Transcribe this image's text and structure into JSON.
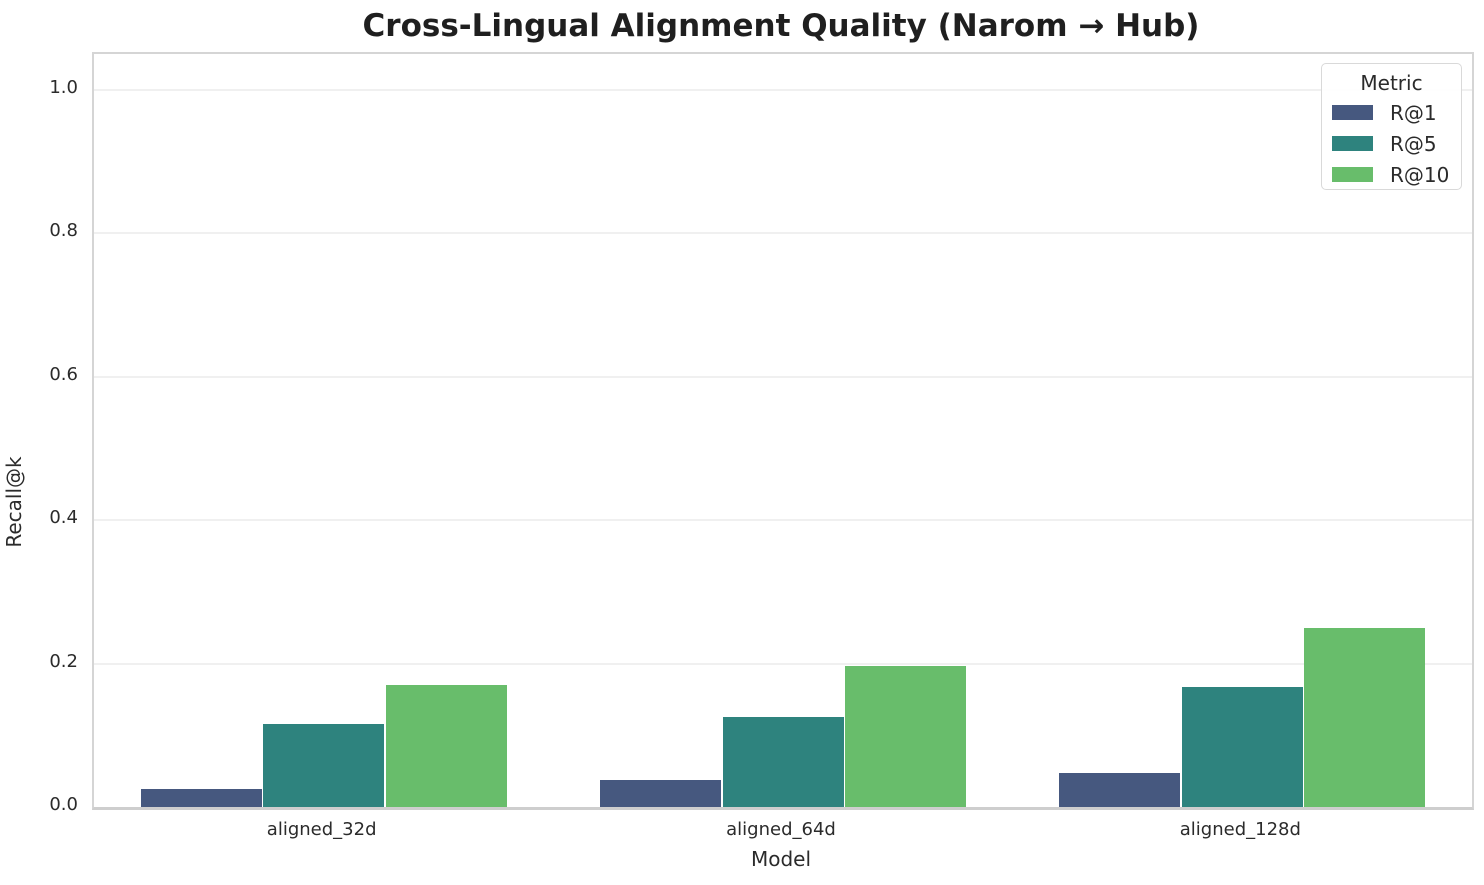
{
  "chart_data": {
    "type": "bar",
    "title": "Cross-Lingual Alignment Quality (Narom → Hub)",
    "xlabel": "Model",
    "ylabel": "Recall@k",
    "categories": [
      "aligned_32d",
      "aligned_64d",
      "aligned_128d"
    ],
    "series": [
      {
        "name": "R@1",
        "color": "#46587f",
        "values": [
          0.025,
          0.038,
          0.048
        ]
      },
      {
        "name": "R@5",
        "color": "#2e837e",
        "values": [
          0.116,
          0.126,
          0.168
        ]
      },
      {
        "name": "R@10",
        "color": "#68bd6b",
        "values": [
          0.17,
          0.197,
          0.25
        ]
      }
    ],
    "ylim": [
      0.0,
      1.05
    ],
    "yticks": [
      0.0,
      0.2,
      0.4,
      0.6,
      0.8,
      1.0
    ],
    "ytick_labels": [
      "0.0",
      "0.2",
      "0.4",
      "0.6",
      "0.8",
      "1.0"
    ],
    "grid": true,
    "legend": {
      "title": "Metric",
      "position": "upper right"
    }
  },
  "colors": {
    "grid": "#f0f0f0",
    "spine": "#d5d5d5",
    "text": "#2b2b2b",
    "title_text": "#1f1f1f",
    "background": "#ffffff"
  }
}
